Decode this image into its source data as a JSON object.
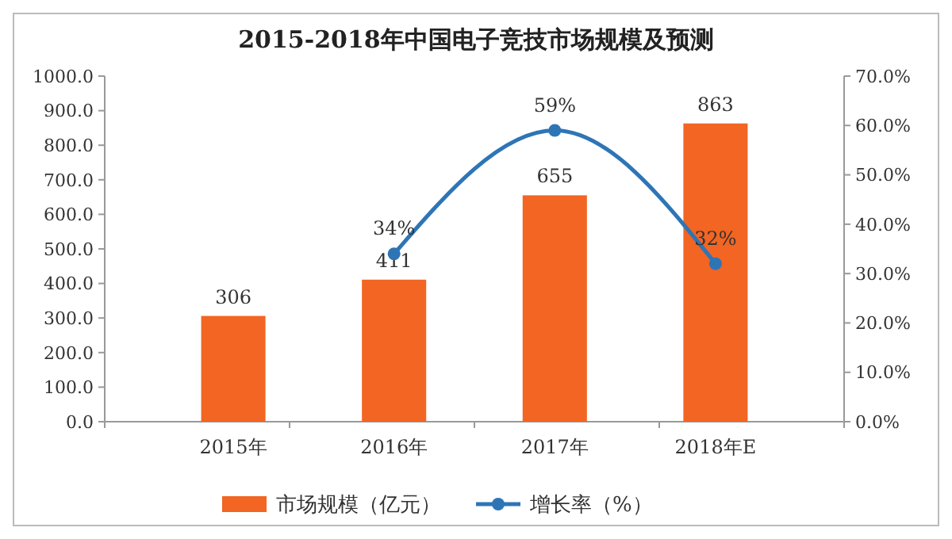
{
  "chart_data": {
    "type": "bar",
    "title": "2015-2018年中国电子竞技市场规模及预测",
    "categories": [
      "2015年",
      "2016年",
      "2017年",
      "2018年E"
    ],
    "series": [
      {
        "name": "市场规模（亿元）",
        "color": "#f26522",
        "values": [
          306,
          411,
          655,
          863
        ],
        "value_labels": [
          "306",
          "411",
          "655",
          "863"
        ]
      },
      {
        "name": "增长率（%）",
        "type": "line",
        "axis": "y2",
        "color": "#2e75b6",
        "values": [
          null,
          34,
          59,
          32
        ],
        "value_labels": [
          null,
          "34%",
          "59%",
          "32%"
        ],
        "marker": "circle"
      }
    ],
    "ylim": [
      0,
      1000
    ],
    "yticks": [
      {
        "value": 0,
        "label": "0.0"
      },
      {
        "value": 100,
        "label": "100.0"
      },
      {
        "value": 200,
        "label": "200.0"
      },
      {
        "value": 300,
        "label": "300.0"
      },
      {
        "value": 400,
        "label": "400.0"
      },
      {
        "value": 500,
        "label": "500.0"
      },
      {
        "value": 600,
        "label": "600.0"
      },
      {
        "value": 700,
        "label": "700.0"
      },
      {
        "value": 800,
        "label": "800.0"
      },
      {
        "value": 900,
        "label": "900.0"
      },
      {
        "value": 1000,
        "label": "1000.0"
      }
    ],
    "y2lim": [
      0,
      70
    ],
    "y2ticks": [
      {
        "value": 0,
        "label": "0.0%"
      },
      {
        "value": 10,
        "label": "10.0%"
      },
      {
        "value": 20,
        "label": "20.0%"
      },
      {
        "value": 30,
        "label": "30.0%"
      },
      {
        "value": 40,
        "label": "40.0%"
      },
      {
        "value": 50,
        "label": "50.0%"
      },
      {
        "value": 60,
        "label": "60.0%"
      },
      {
        "value": 70,
        "label": "70.0%"
      }
    ],
    "legend": "bottom"
  }
}
